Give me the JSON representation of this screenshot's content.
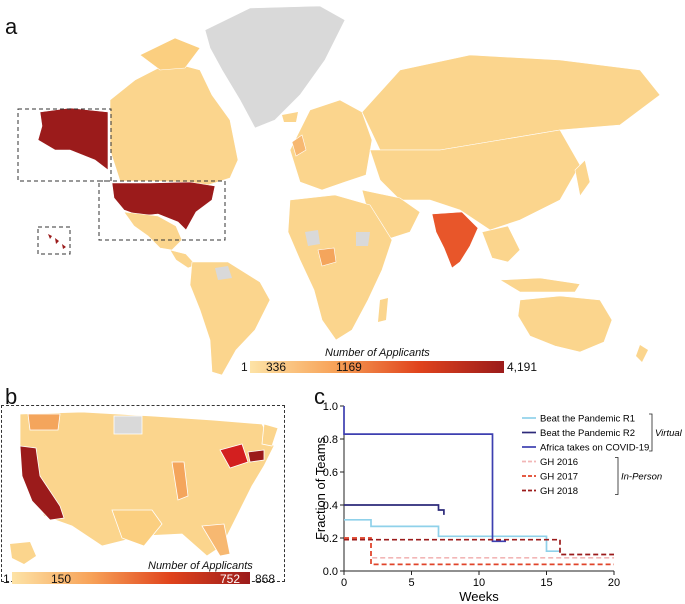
{
  "panels": {
    "a": {
      "letter": "a"
    },
    "b": {
      "letter": "b"
    },
    "c": {
      "letter": "c"
    }
  },
  "map_a": {
    "colorbar": {
      "title": "Number of Applicants",
      "ticks": [
        "1",
        "336",
        "1169",
        "4,191"
      ],
      "colors": [
        "#fde3a6",
        "#f7a258",
        "#e0431c",
        "#9b1b1b"
      ]
    },
    "highlight_colors": {
      "high": "#9b1b1b",
      "india": "#e8562a",
      "nigeria": "#f4a55c",
      "default": "#fbd58d",
      "no_data": "#d9d9d9"
    }
  },
  "map_b": {
    "colorbar": {
      "title": "Number of Applicants",
      "ticks": [
        "1",
        "150",
        "752",
        "868"
      ],
      "colors": [
        "#fde3a6",
        "#f7a258",
        "#e0431c",
        "#9b1b1b"
      ]
    }
  },
  "chart_data": {
    "type": "line",
    "step": true,
    "xlabel": "Weeks",
    "ylabel": "Fraction of Teams",
    "xlim": [
      0,
      20
    ],
    "ylim": [
      0,
      1.0
    ],
    "xticks": [
      "0",
      "5",
      "10",
      "15",
      "20"
    ],
    "yticks": [
      "0.0",
      "0.2",
      "0.4",
      "0.6",
      "0.8",
      "1.0"
    ],
    "groups": [
      {
        "label": "Virtual",
        "series_indices": [
          0,
          1,
          2
        ]
      },
      {
        "label": "In-Person",
        "series_indices": [
          3,
          4,
          5
        ]
      }
    ],
    "series": [
      {
        "name": "Beat the Pandemic R1",
        "color": "#8fd1ea",
        "dash": "solid",
        "points": [
          [
            0,
            0.31
          ],
          [
            2,
            0.31
          ],
          [
            2,
            0.27
          ],
          [
            7,
            0.27
          ],
          [
            7,
            0.21
          ],
          [
            15,
            0.21
          ],
          [
            15,
            0.12
          ],
          [
            16,
            0.12
          ]
        ]
      },
      {
        "name": "Beat the Pandemic R2",
        "color": "#2d2a7a",
        "dash": "solid",
        "points": [
          [
            0,
            0.4
          ],
          [
            7,
            0.4
          ],
          [
            7,
            0.37
          ],
          [
            7.4,
            0.37
          ],
          [
            7.4,
            0.34
          ]
        ]
      },
      {
        "name": "Africa takes on COVID-19",
        "color": "#3d3fb0",
        "dash": "solid",
        "points": [
          [
            0,
            1.0
          ],
          [
            0,
            0.83
          ],
          [
            11,
            0.83
          ],
          [
            11,
            0.18
          ],
          [
            12,
            0.18
          ]
        ]
      },
      {
        "name": "GH 2016",
        "color": "#f2b6b6",
        "dash": "dashed",
        "points": [
          [
            0,
            0.2
          ],
          [
            2,
            0.2
          ],
          [
            2,
            0.08
          ],
          [
            20,
            0.08
          ]
        ]
      },
      {
        "name": "GH 2017",
        "color": "#e0442a",
        "dash": "dashed",
        "points": [
          [
            0,
            0.2
          ],
          [
            2,
            0.2
          ],
          [
            2,
            0.04
          ],
          [
            20,
            0.04
          ]
        ]
      },
      {
        "name": "GH 2018",
        "color": "#9b1b1b",
        "dash": "dashed",
        "points": [
          [
            0,
            0.19
          ],
          [
            16,
            0.19
          ],
          [
            16,
            0.1
          ],
          [
            20,
            0.1
          ]
        ]
      }
    ]
  }
}
